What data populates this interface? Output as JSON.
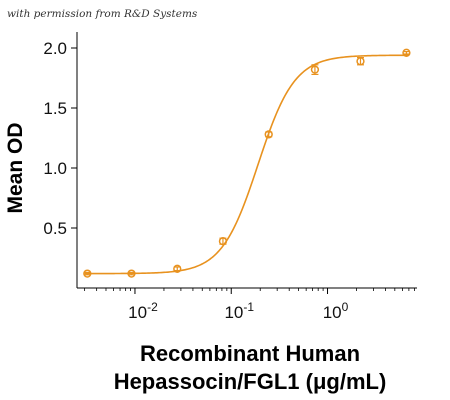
{
  "watermark": "with permission from R&D Systems",
  "chart_data": {
    "type": "scatter",
    "xscale": "log",
    "ylabel": "Mean OD",
    "xlabel_line1": "Recombinant Human",
    "xlabel_line2": "Hepassocin/FGL1 (μg/mL)",
    "xlim": [
      0.0025,
      8.5
    ],
    "ylim": [
      0,
      2.1
    ],
    "x_ticks": [
      {
        "value": 0.01,
        "base": "10",
        "exp": "-2"
      },
      {
        "value": 0.1,
        "base": "10",
        "exp": "-1"
      },
      {
        "value": 1,
        "base": "10",
        "exp": "0"
      }
    ],
    "y_ticks": [
      {
        "value": 0.5,
        "label": "0.5"
      },
      {
        "value": 1.0,
        "label": "1.0"
      },
      {
        "value": 1.5,
        "label": "1.5"
      },
      {
        "value": 2.0,
        "label": "2.0"
      }
    ],
    "color": "#e8921f",
    "series": [
      {
        "points": [
          {
            "x": 0.0032,
            "y": 0.12,
            "err": 0.01
          },
          {
            "x": 0.0092,
            "y": 0.12,
            "err": 0.01
          },
          {
            "x": 0.0275,
            "y": 0.16,
            "err": 0.015
          },
          {
            "x": 0.082,
            "y": 0.39,
            "err": 0.025
          },
          {
            "x": 0.245,
            "y": 1.28,
            "err": 0.02
          },
          {
            "x": 0.74,
            "y": 1.82,
            "err": 0.04
          },
          {
            "x": 2.2,
            "y": 1.89,
            "err": 0.03
          },
          {
            "x": 6.6,
            "y": 1.96,
            "err": 0.01
          }
        ]
      }
    ]
  }
}
